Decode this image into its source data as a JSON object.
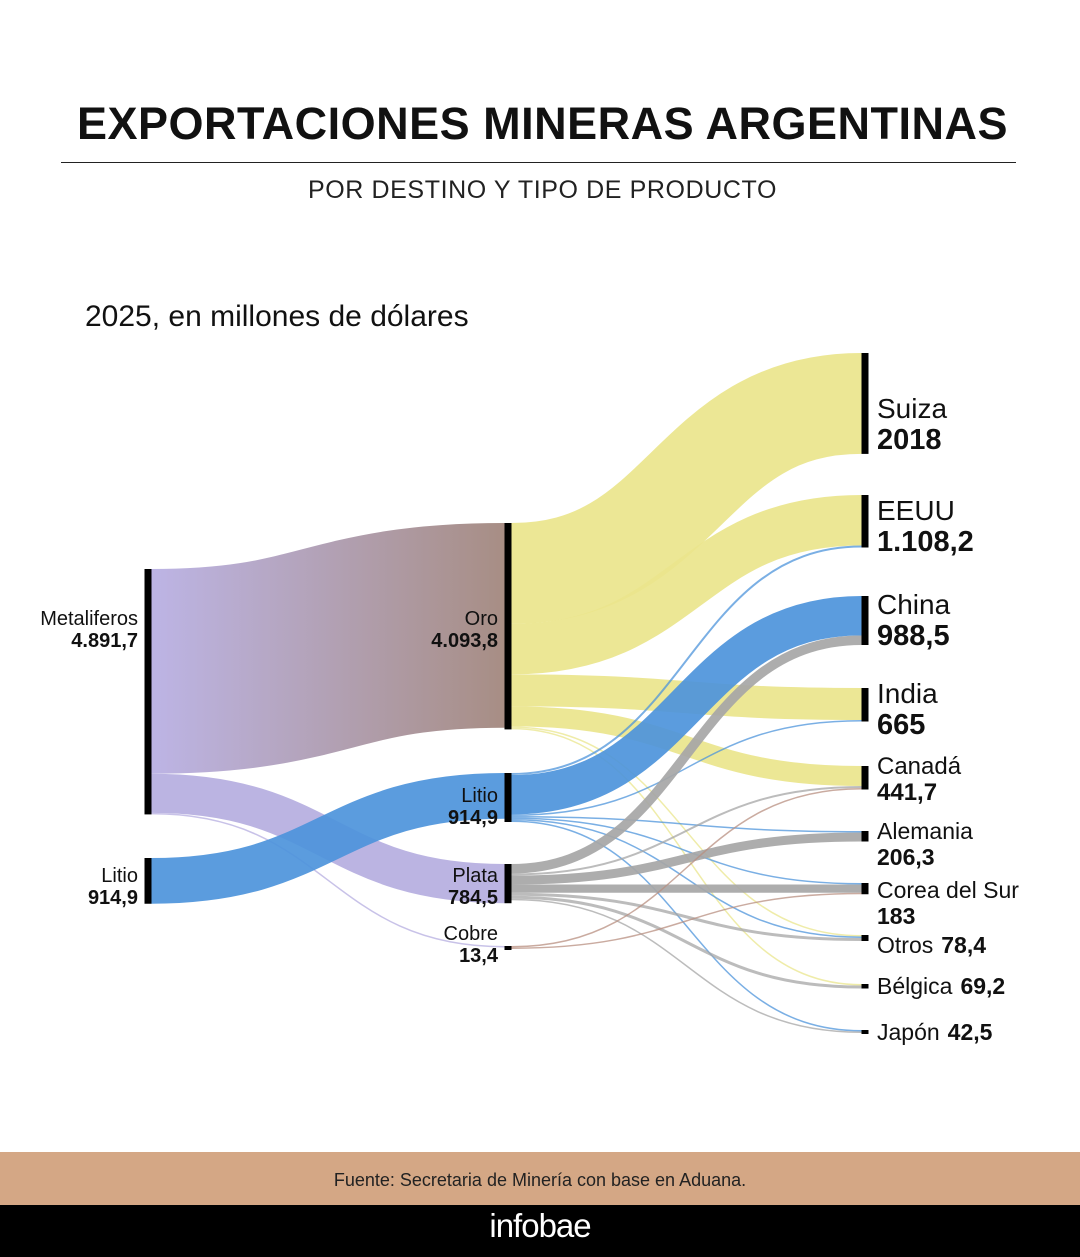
{
  "header": {
    "title": "EXPORTACIONES MINERAS ARGENTINAS",
    "subtitle": "POR DESTINO Y TIPO DE PRODUCTO",
    "unit_label": "2025, en millones de dólares"
  },
  "footer": {
    "source": "Fuente: Secretaria de Minería con base en Aduana.",
    "brand": "infobae"
  },
  "colors": {
    "oro": "#eae58c",
    "litio": "#4d94db",
    "plata": "#a6a6a6",
    "cobre": "#b88f80",
    "metaliferos": "#b5aee0",
    "oro_node_flow": "#a0847a",
    "node_bar": "#000000",
    "footer_bg": "#d4a785",
    "brand_bg": "#000000"
  },
  "chart_data": {
    "type": "sankey",
    "unit": "millones de dólares",
    "year": "2025",
    "nodes": [
      {
        "id": "metaliferos",
        "name": "Metaliferos",
        "value": "4.891,7",
        "column": 0
      },
      {
        "id": "litio_src",
        "name": "Litio",
        "value": "914,9",
        "column": 0
      },
      {
        "id": "oro",
        "name": "Oro",
        "value": "4.093,8",
        "column": 1
      },
      {
        "id": "litio",
        "name": "Litio",
        "value": "914,9",
        "column": 1
      },
      {
        "id": "plata",
        "name": "Plata",
        "value": "784,5",
        "column": 1
      },
      {
        "id": "cobre",
        "name": "Cobre",
        "value": "13,4",
        "column": 1
      },
      {
        "id": "suiza",
        "name": "Suiza",
        "value": "2018",
        "column": 2
      },
      {
        "id": "eeuu",
        "name": "EEUU",
        "value": "1.108,2",
        "column": 2
      },
      {
        "id": "china",
        "name": "China",
        "value": "988,5",
        "column": 2
      },
      {
        "id": "india",
        "name": "India",
        "value": "665",
        "column": 2
      },
      {
        "id": "canada",
        "name": "Canadá",
        "value": "441,7",
        "column": 2
      },
      {
        "id": "alemania",
        "name": "Alemania",
        "value": "206,3",
        "column": 2
      },
      {
        "id": "corea",
        "name": "Corea del Sur",
        "value": "183",
        "column": 2
      },
      {
        "id": "otros",
        "name": "Otros",
        "value": "78,4",
        "column": 2
      },
      {
        "id": "belgica",
        "name": "Bélgica",
        "value": "69,2",
        "column": 2
      },
      {
        "id": "japon",
        "name": "Japón",
        "value": "42,5",
        "column": 2
      }
    ],
    "links": [
      {
        "source": "metaliferos",
        "target": "oro",
        "value": 4093.8,
        "color": "oro_node_flow"
      },
      {
        "source": "metaliferos",
        "target": "plata",
        "value": 784.5,
        "color": "metaliferos"
      },
      {
        "source": "metaliferos",
        "target": "cobre",
        "value": 13.4,
        "color": "metaliferos"
      },
      {
        "source": "litio_src",
        "target": "litio",
        "value": 914.9,
        "color": "litio"
      },
      {
        "source": "oro",
        "target": "suiza",
        "value": 2018,
        "color": "oro"
      },
      {
        "source": "oro",
        "target": "eeuu",
        "value": 1010,
        "color": "oro"
      },
      {
        "source": "oro",
        "target": "india",
        "value": 640,
        "color": "oro"
      },
      {
        "source": "oro",
        "target": "canada",
        "value": 400,
        "color": "oro"
      },
      {
        "source": "oro",
        "target": "belgica",
        "value": 8,
        "color": "oro"
      },
      {
        "source": "oro",
        "target": "otros",
        "value": 8,
        "color": "oro"
      },
      {
        "source": "litio",
        "target": "eeuu",
        "value": 40,
        "color": "litio"
      },
      {
        "source": "litio",
        "target": "china",
        "value": 790,
        "color": "litio"
      },
      {
        "source": "litio",
        "target": "india",
        "value": 18,
        "color": "litio"
      },
      {
        "source": "litio",
        "target": "alemania",
        "value": 20,
        "color": "litio"
      },
      {
        "source": "litio",
        "target": "corea",
        "value": 15,
        "color": "litio"
      },
      {
        "source": "litio",
        "target": "otros",
        "value": 6,
        "color": "litio"
      },
      {
        "source": "litio",
        "target": "japon",
        "value": 8,
        "color": "litio"
      },
      {
        "source": "plata",
        "target": "china",
        "value": 190,
        "color": "plata"
      },
      {
        "source": "plata",
        "target": "canada",
        "value": 40,
        "color": "plata"
      },
      {
        "source": "plata",
        "target": "alemania",
        "value": 180,
        "color": "plata"
      },
      {
        "source": "plata",
        "target": "corea",
        "value": 165,
        "color": "plata"
      },
      {
        "source": "plata",
        "target": "otros",
        "value": 60,
        "color": "plata"
      },
      {
        "source": "plata",
        "target": "belgica",
        "value": 60,
        "color": "plata"
      },
      {
        "source": "plata",
        "target": "japon",
        "value": 30,
        "color": "plata"
      },
      {
        "source": "cobre",
        "target": "canada",
        "value": 3,
        "color": "cobre"
      },
      {
        "source": "cobre",
        "target": "corea",
        "value": 3,
        "color": "cobre"
      }
    ]
  }
}
